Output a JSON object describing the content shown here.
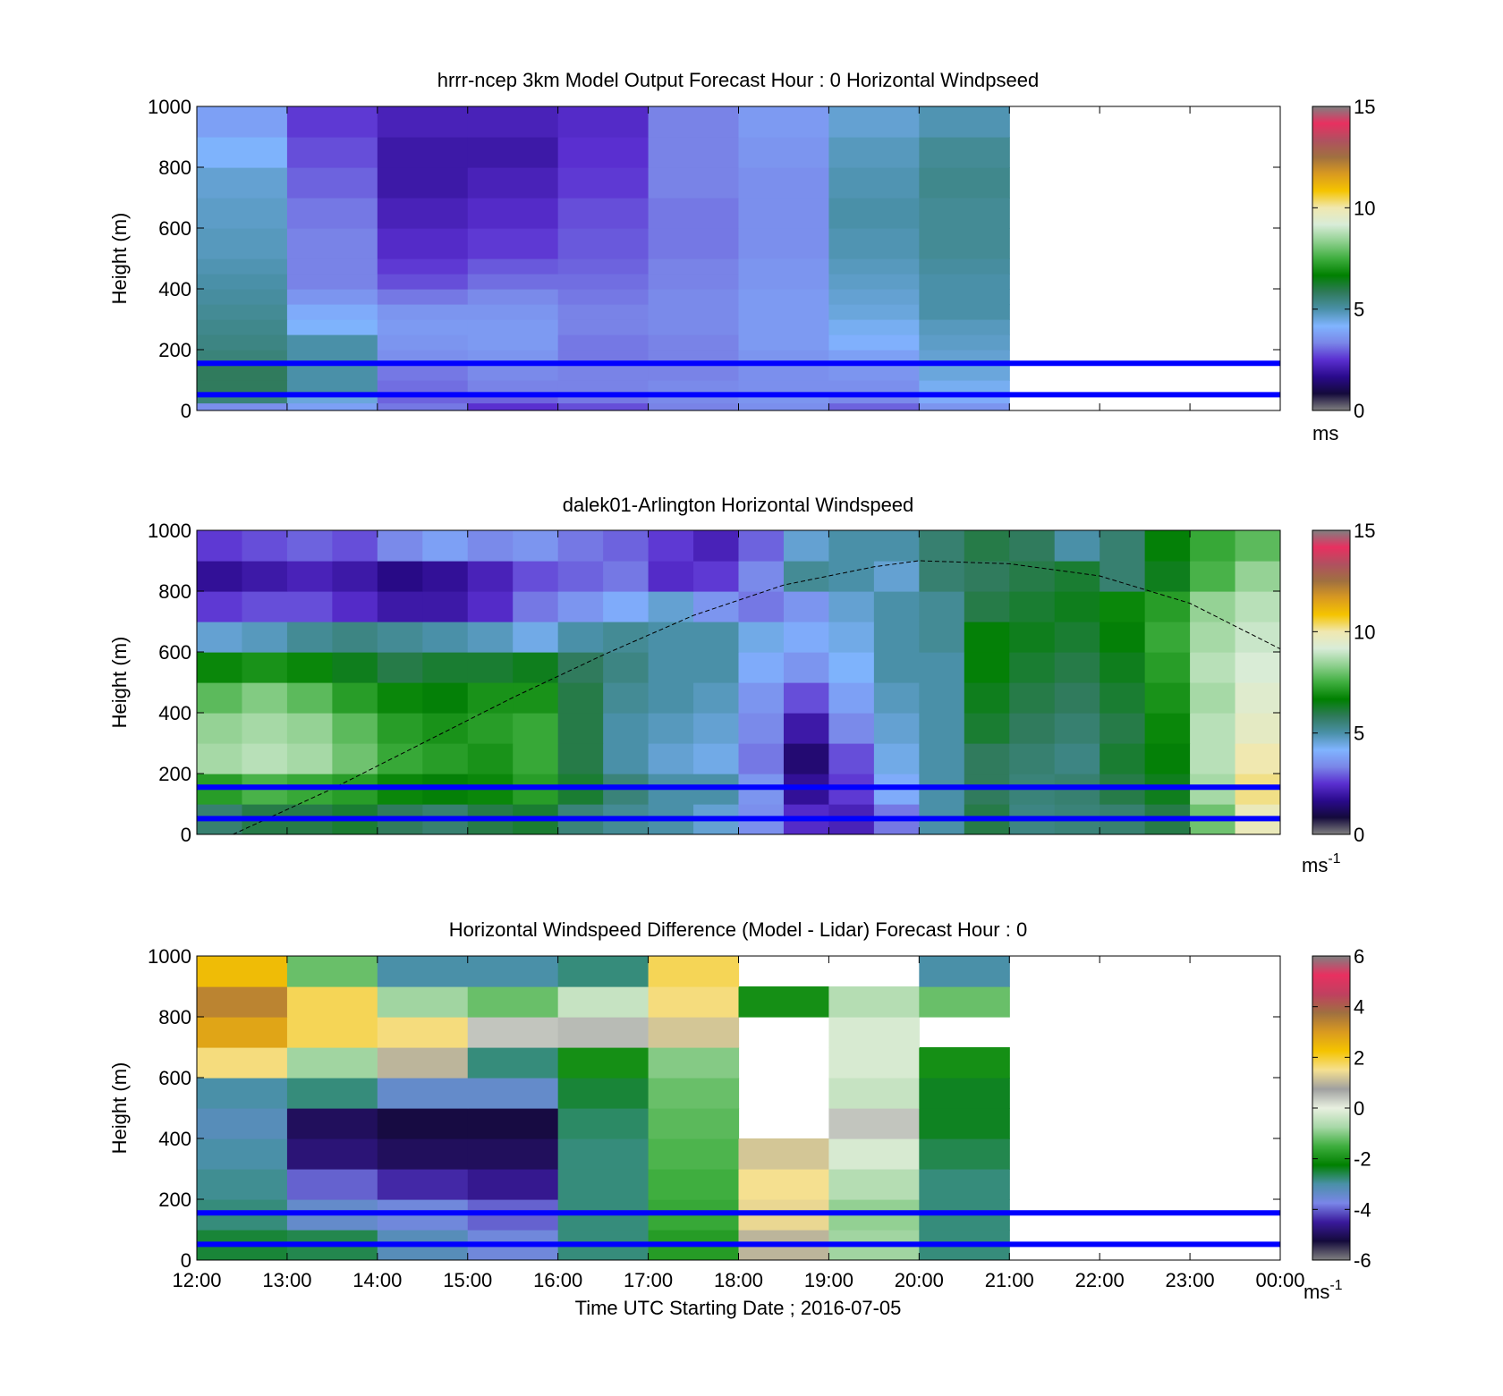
{
  "figure": {
    "xlabel": "Time UTC  Starting Date ; 2016-07-05",
    "xticks": [
      "12:00",
      "13:00",
      "14:00",
      "15:00",
      "16:00",
      "17:00",
      "18:00",
      "19:00",
      "20:00",
      "21:00",
      "22:00",
      "23:00",
      "00:00"
    ],
    "yticks": [
      "0",
      "200",
      "400",
      "600",
      "800",
      "1000"
    ],
    "ylabel": "Height (m)",
    "colors": {
      "reference_lines": "#0000ff",
      "missing": "#ffffff",
      "speed_scale": [
        "#808080",
        "#140a3c",
        "#2a0a8c",
        "#5a2fd0",
        "#7a86e8",
        "#80b4ff",
        "#4a90a8",
        "#2f7a5a",
        "#008000",
        "#3fae3f",
        "#8fd08f",
        "#d8ecd8",
        "#f0e8b0",
        "#f5c400",
        "#d99a20",
        "#a07040",
        "#b05060",
        "#e83060",
        "#808080"
      ],
      "difference_scale": [
        "#808080",
        "#140a3c",
        "#3a1a9c",
        "#7a86e8",
        "#4a90a8",
        "#008000",
        "#3fae3f",
        "#a8d8a8",
        "#e8f0e0",
        "#a0a0a0",
        "#f5e090",
        "#f5c400",
        "#d99a20",
        "#a07040",
        "#c04060",
        "#e83060",
        "#808080"
      ]
    }
  },
  "chart_data": [
    {
      "type": "heatmap",
      "title": "hrrr-ncep 3km Model Output   Forecast Hour : 0 Horizontal Windpseed",
      "ylabel": "Height (m)",
      "ylim": [
        0,
        1000
      ],
      "xlim": [
        "12:00",
        "00:00"
      ],
      "colorbar": {
        "range": [
          0,
          15
        ],
        "ticks": [
          "0",
          "5",
          "10",
          "15"
        ],
        "unit": "ms"
      },
      "reference_lines_m": [
        155,
        52
      ],
      "hour_columns": [
        "12:00",
        "13:00",
        "14:00",
        "15:00",
        "16:00",
        "17:00",
        "18:00",
        "19:00",
        "20:00"
      ],
      "level_bottoms_m": [
        0,
        25,
        60,
        100,
        150,
        200,
        250,
        300,
        350,
        400,
        450,
        500,
        600,
        700,
        800,
        900
      ],
      "values_ms": [
        [
          3.5,
          3.8,
          3.2,
          2.5,
          2.8,
          3.3,
          3.5,
          3.0,
          3.6
        ],
        [
          5.5,
          4.5,
          3.0,
          3.0,
          3.2,
          3.4,
          3.6,
          3.4,
          4.0
        ],
        [
          5.8,
          5.0,
          3.1,
          3.3,
          3.3,
          3.4,
          3.5,
          3.5,
          4.3
        ],
        [
          5.8,
          5.0,
          3.2,
          3.4,
          3.3,
          3.3,
          3.5,
          3.6,
          4.5
        ],
        [
          5.5,
          5.0,
          3.5,
          3.6,
          3.2,
          3.3,
          3.6,
          3.8,
          4.6
        ],
        [
          5.4,
          5.0,
          3.6,
          3.7,
          3.2,
          3.3,
          3.7,
          4.1,
          4.7
        ],
        [
          5.3,
          4.2,
          3.7,
          3.7,
          3.3,
          3.4,
          3.7,
          4.3,
          4.8
        ],
        [
          5.2,
          4.0,
          3.6,
          3.6,
          3.3,
          3.4,
          3.7,
          4.5,
          5.0
        ],
        [
          5.1,
          3.6,
          3.2,
          3.4,
          3.2,
          3.4,
          3.7,
          4.6,
          5.0
        ],
        [
          5.0,
          3.3,
          2.8,
          3.1,
          3.1,
          3.3,
          3.6,
          4.7,
          5.0
        ],
        [
          4.9,
          3.3,
          2.6,
          2.9,
          3.0,
          3.3,
          3.6,
          4.8,
          5.1
        ],
        [
          4.8,
          3.3,
          2.4,
          2.6,
          2.9,
          3.2,
          3.5,
          4.9,
          5.2
        ],
        [
          4.7,
          3.2,
          2.2,
          2.4,
          2.8,
          3.2,
          3.5,
          5.0,
          5.2
        ],
        [
          4.6,
          3.0,
          2.0,
          2.2,
          2.6,
          3.3,
          3.5,
          4.9,
          5.3
        ],
        [
          4.2,
          2.8,
          2.0,
          2.0,
          2.5,
          3.3,
          3.6,
          4.8,
          5.2
        ],
        [
          3.8,
          2.6,
          2.2,
          2.2,
          2.4,
          3.3,
          3.7,
          4.6,
          4.9
        ]
      ]
    },
    {
      "type": "heatmap",
      "title": "dalek01-Arlington  Horizontal Windspeed",
      "ylabel": "Height (m)",
      "ylim": [
        0,
        1000
      ],
      "xlim": [
        "12:00",
        "00:00"
      ],
      "colorbar": {
        "range": [
          0,
          15
        ],
        "ticks": [
          "0",
          "5",
          "10",
          "15"
        ],
        "unit": "ms",
        "unit_exponent": "-1"
      },
      "reference_lines_m": [
        155,
        52
      ],
      "solar_elevation_curve_m": {
        "x_hours": [
          12.4,
          13.5,
          14.5,
          15.5,
          16.5,
          17.5,
          18.5,
          19.5,
          20.0,
          21.0,
          22.0,
          23.0,
          24.0
        ],
        "y_m": [
          0,
          150,
          300,
          450,
          590,
          720,
          820,
          880,
          900,
          890,
          850,
          760,
          610
        ]
      },
      "time_columns_hours": [
        12.0,
        12.5,
        13.0,
        13.5,
        14.0,
        14.5,
        15.0,
        15.5,
        16.0,
        16.5,
        17.0,
        17.5,
        18.0,
        18.5,
        19.0,
        19.5,
        20.0,
        20.5,
        21.0,
        21.5,
        22.0,
        22.5,
        23.0,
        23.5
      ],
      "level_bottoms_m": [
        0,
        100,
        200,
        300,
        400,
        500,
        600,
        700,
        800,
        900
      ],
      "values_ms": [
        [
          5.6,
          6.0,
          6.0,
          6.2,
          5.8,
          5.6,
          6.0,
          6.2,
          5.5,
          5.2,
          5.0,
          4.6,
          3.5,
          2.4,
          2.2,
          3.2,
          5.0,
          6.0,
          5.4,
          5.5,
          5.6,
          6.0,
          8.0,
          9.8
        ],
        [
          7.2,
          7.6,
          7.4,
          7.2,
          6.8,
          6.6,
          6.8,
          7.2,
          6.2,
          5.5,
          5.0,
          5.0,
          3.6,
          1.8,
          2.6,
          4.0,
          5.0,
          5.8,
          5.5,
          5.6,
          6.0,
          6.4,
          8.6,
          10.2
        ],
        [
          8.6,
          8.8,
          8.6,
          8.0,
          7.4,
          7.2,
          7.0,
          7.4,
          6.0,
          5.0,
          4.6,
          4.4,
          3.2,
          1.4,
          2.8,
          4.4,
          5.0,
          5.8,
          5.6,
          5.4,
          6.2,
          6.6,
          8.8,
          10.0
        ],
        [
          8.4,
          8.6,
          8.4,
          7.8,
          7.2,
          7.0,
          7.2,
          7.4,
          6.0,
          5.0,
          4.8,
          4.6,
          3.4,
          2.0,
          3.4,
          4.6,
          5.0,
          6.2,
          5.8,
          5.6,
          6.0,
          6.8,
          8.8,
          9.6
        ],
        [
          7.8,
          8.2,
          7.8,
          7.2,
          6.8,
          6.6,
          7.0,
          7.0,
          6.0,
          5.2,
          5.0,
          4.8,
          3.6,
          2.8,
          3.8,
          4.8,
          5.0,
          6.4,
          6.0,
          5.8,
          6.2,
          7.0,
          8.6,
          9.4
        ],
        [
          6.8,
          7.0,
          6.8,
          6.4,
          6.0,
          6.2,
          6.2,
          6.4,
          5.8,
          5.4,
          5.0,
          5.0,
          4.0,
          3.6,
          4.2,
          5.0,
          5.0,
          6.6,
          6.2,
          6.0,
          6.4,
          7.2,
          8.8,
          9.2
        ],
        [
          4.6,
          4.8,
          5.2,
          5.4,
          5.2,
          5.0,
          4.8,
          4.4,
          5.0,
          5.2,
          5.0,
          5.0,
          4.4,
          4.0,
          4.4,
          5.0,
          5.2,
          6.6,
          6.4,
          6.2,
          6.6,
          7.4,
          8.6,
          9.0
        ],
        [
          2.6,
          2.8,
          2.8,
          2.4,
          2.0,
          2.0,
          2.4,
          3.2,
          3.6,
          4.0,
          4.6,
          3.6,
          3.2,
          3.6,
          4.6,
          5.0,
          5.2,
          6.0,
          6.2,
          6.4,
          6.8,
          7.2,
          8.4,
          8.8
        ],
        [
          1.8,
          2.0,
          2.2,
          2.0,
          1.6,
          1.8,
          2.2,
          2.8,
          3.0,
          3.2,
          2.4,
          2.6,
          3.4,
          5.2,
          5.0,
          4.6,
          5.6,
          5.8,
          6.0,
          6.2,
          5.6,
          6.4,
          7.6,
          8.4
        ],
        [
          2.6,
          2.8,
          3.0,
          2.8,
          3.4,
          3.8,
          3.4,
          3.6,
          3.2,
          3.0,
          2.6,
          2.2,
          3.0,
          4.6,
          5.0,
          5.0,
          5.6,
          6.0,
          5.8,
          5.0,
          5.6,
          6.6,
          7.4,
          7.8
        ]
      ]
    },
    {
      "type": "heatmap",
      "title": "Horizontal Windspeed Difference (Model - Lidar) Forecast Hour : 0",
      "ylabel": "Height (m)",
      "xlabel": "Time UTC  Starting Date ; 2016-07-05",
      "ylim": [
        0,
        1000
      ],
      "xlim": [
        "12:00",
        "00:00"
      ],
      "colorbar": {
        "range": [
          -6,
          6
        ],
        "ticks": [
          "-6",
          "-4",
          "-2",
          "0",
          "2",
          "4",
          "6"
        ],
        "unit": "ms",
        "unit_exponent": "-1"
      },
      "reference_lines_m": [
        155,
        52
      ],
      "hour_columns": [
        "12:00",
        "13:00",
        "14:00",
        "15:00",
        "16:00",
        "17:00",
        "18:00",
        "19:00",
        "20:00"
      ],
      "level_bottoms_m": [
        0,
        100,
        200,
        300,
        400,
        500,
        600,
        700,
        800,
        900
      ],
      "values_ms": [
        [
          -2.5,
          -2.6,
          -3.2,
          -3.6,
          -2.8,
          -1.8,
          1.0,
          -0.8,
          -2.8
        ],
        [
          -2.8,
          -3.4,
          -3.6,
          -4.0,
          -2.8,
          -1.6,
          1.4,
          -0.9,
          -2.8
        ],
        [
          -2.9,
          -4.0,
          -4.4,
          -4.6,
          -2.8,
          -1.5,
          1.5,
          -0.6,
          -2.8
        ],
        [
          -3.0,
          -4.8,
          -5.0,
          -5.0,
          -2.8,
          -1.4,
          1.2,
          -0.2,
          -2.6
        ],
        [
          -3.2,
          -5.0,
          -5.2,
          -5.2,
          -2.7,
          -1.3,
          null,
          0.4,
          -2.4
        ],
        [
          -3.0,
          -2.8,
          -3.4,
          -3.4,
          -2.5,
          -1.2,
          null,
          -0.4,
          -2.4
        ],
        [
          1.6,
          -0.8,
          1.0,
          -2.8,
          -2.0,
          -1.0,
          null,
          -0.2,
          -2.0
        ],
        [
          2.8,
          1.8,
          1.6,
          0.4,
          0.5,
          1.2,
          null,
          -0.2,
          null
        ],
        [
          3.4,
          1.8,
          -0.8,
          -1.2,
          -0.4,
          1.6,
          -2.0,
          -0.6,
          -1.2
        ],
        [
          2.4,
          -1.2,
          -3.0,
          -3.0,
          -2.8,
          1.8,
          null,
          null,
          -3.0
        ]
      ]
    }
  ]
}
